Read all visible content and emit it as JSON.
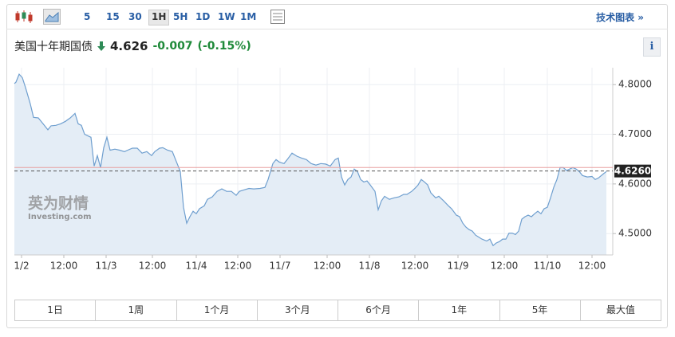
{
  "toolbar": {
    "intervals": [
      "5",
      "15",
      "30",
      "1H",
      "5H",
      "1D",
      "1W",
      "1M"
    ],
    "active_interval": 3,
    "link": "技术图表 »"
  },
  "header": {
    "title": "美国十年期国债",
    "price": "4.626",
    "change": "-0.007",
    "change_pct": "(-0.15%)",
    "info": "i"
  },
  "watermark": {
    "brand": "英为财情",
    "site": "Investing.com"
  },
  "chart_data": {
    "type": "area",
    "color": "#6f9fcf",
    "fill": "#e4edf6",
    "grid": true,
    "x": [
      0,
      2,
      6,
      10,
      14,
      20,
      24,
      30,
      36,
      42,
      46,
      52,
      58,
      64,
      70,
      76,
      80,
      84,
      88,
      92,
      96,
      100,
      104,
      108,
      112,
      116,
      120,
      126,
      132,
      138,
      142,
      148,
      154,
      160,
      166,
      172,
      176,
      182,
      186,
      192,
      198,
      202,
      208,
      212,
      216,
      220,
      224,
      228,
      232,
      238,
      242,
      248,
      254,
      260,
      266,
      272,
      278,
      282,
      288,
      294,
      300,
      308,
      314,
      318,
      324,
      328,
      332,
      338,
      342,
      348,
      354,
      360,
      366,
      372,
      378,
      384,
      390,
      396,
      402,
      406,
      410,
      414,
      418,
      422,
      426,
      430,
      434,
      438,
      442,
      446,
      452,
      456,
      460,
      464,
      470,
      476,
      482,
      488,
      492,
      498,
      502,
      506,
      510,
      514,
      518,
      522,
      528,
      532,
      538,
      544,
      548,
      554,
      558,
      562,
      566,
      570,
      574,
      578,
      582,
      586,
      592,
      596,
      600,
      604,
      608,
      612,
      616,
      620,
      624,
      628,
      632,
      636,
      640,
      644,
      648,
      652,
      656,
      660,
      664,
      668,
      672,
      676,
      680,
      684,
      688,
      692,
      696,
      700,
      704,
      708,
      712,
      718,
      724,
      728,
      732,
      738,
      742
    ],
    "values": [
      4.802,
      4.805,
      4.821,
      4.814,
      4.794,
      4.761,
      4.734,
      4.733,
      4.721,
      4.709,
      4.717,
      4.718,
      4.721,
      4.726,
      4.733,
      4.742,
      4.721,
      4.718,
      4.7,
      4.697,
      4.694,
      4.636,
      4.657,
      4.633,
      4.673,
      4.694,
      4.668,
      4.67,
      4.668,
      4.665,
      4.668,
      4.672,
      4.672,
      4.662,
      4.665,
      4.657,
      4.665,
      4.672,
      4.673,
      4.668,
      4.665,
      4.649,
      4.625,
      4.553,
      4.521,
      4.534,
      4.545,
      4.54,
      4.55,
      4.556,
      4.569,
      4.574,
      4.585,
      4.59,
      4.585,
      4.585,
      4.577,
      4.585,
      4.588,
      4.591,
      4.59,
      4.591,
      4.593,
      4.609,
      4.641,
      4.649,
      4.644,
      4.641,
      4.649,
      4.662,
      4.656,
      4.652,
      4.649,
      4.641,
      4.638,
      4.641,
      4.64,
      4.636,
      4.649,
      4.652,
      4.614,
      4.598,
      4.609,
      4.614,
      4.63,
      4.625,
      4.609,
      4.604,
      4.606,
      4.598,
      4.585,
      4.548,
      4.566,
      4.575,
      4.569,
      4.572,
      4.574,
      4.579,
      4.579,
      4.585,
      4.591,
      4.598,
      4.609,
      4.604,
      4.598,
      4.582,
      4.572,
      4.575,
      4.566,
      4.556,
      4.55,
      4.537,
      4.534,
      4.521,
      4.513,
      4.508,
      4.505,
      4.497,
      4.493,
      4.489,
      4.485,
      4.489,
      4.476,
      4.481,
      4.484,
      4.489,
      4.489,
      4.501,
      4.501,
      4.498,
      4.505,
      4.529,
      4.534,
      4.537,
      4.534,
      4.54,
      4.545,
      4.54,
      4.55,
      4.553,
      4.572,
      4.593,
      4.609,
      4.633,
      4.633,
      4.627,
      4.63,
      4.633,
      4.63,
      4.625,
      4.617,
      4.614,
      4.615,
      4.609,
      4.612,
      4.62,
      4.625
    ],
    "xlim": [
      0,
      750
    ],
    "xticks": [
      {
        "value": 9,
        "label": "1/2"
      },
      {
        "value": 62,
        "label": "12:00"
      },
      {
        "value": 115,
        "label": "11/3"
      },
      {
        "value": 173,
        "label": "12:00"
      },
      {
        "value": 228,
        "label": "11/4"
      },
      {
        "value": 280,
        "label": "12:00"
      },
      {
        "value": 333,
        "label": "11/7"
      },
      {
        "value": 392,
        "label": "12:00"
      },
      {
        "value": 445,
        "label": "11/8"
      },
      {
        "value": 502,
        "label": "12:00"
      },
      {
        "value": 556,
        "label": "11/9"
      },
      {
        "value": 614,
        "label": "12:00"
      },
      {
        "value": 668,
        "label": "11/10"
      },
      {
        "value": 724,
        "label": "12:00"
      }
    ],
    "ylim": [
      4.457,
      4.834
    ],
    "yticks": [
      {
        "value": 4.5,
        "label": "4.5000"
      },
      {
        "value": 4.6,
        "label": "4.6000"
      },
      {
        "value": 4.7,
        "label": "4.7000"
      },
      {
        "value": 4.8,
        "label": "4.8000"
      }
    ],
    "current_line": {
      "value": 4.626,
      "label": "4.6260"
    },
    "reference_line": 4.633
  },
  "ranges": [
    "1日",
    "1周",
    "1个月",
    "3个月",
    "6个月",
    "1年",
    "5年",
    "最大值"
  ]
}
